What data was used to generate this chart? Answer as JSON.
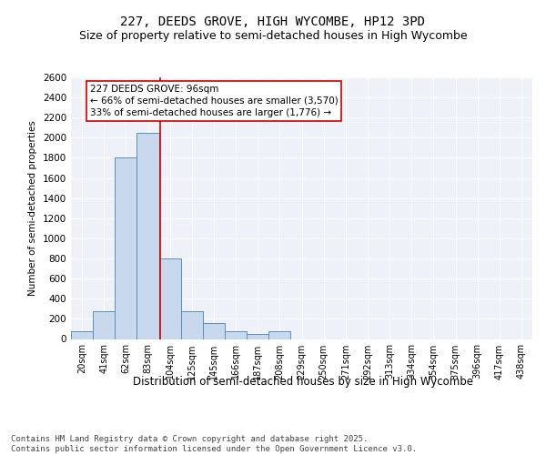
{
  "title_line1": "227, DEEDS GROVE, HIGH WYCOMBE, HP12 3PD",
  "title_line2": "Size of property relative to semi-detached houses in High Wycombe",
  "xlabel": "Distribution of semi-detached houses by size in High Wycombe",
  "ylabel": "Number of semi-detached properties",
  "categories": [
    "20sqm",
    "41sqm",
    "62sqm",
    "83sqm",
    "104sqm",
    "125sqm",
    "145sqm",
    "166sqm",
    "187sqm",
    "208sqm",
    "229sqm",
    "250sqm",
    "271sqm",
    "292sqm",
    "313sqm",
    "334sqm",
    "354sqm",
    "375sqm",
    "396sqm",
    "417sqm",
    "438sqm"
  ],
  "values": [
    75,
    275,
    1800,
    2050,
    800,
    275,
    160,
    75,
    50,
    75,
    0,
    0,
    0,
    0,
    0,
    0,
    0,
    0,
    0,
    0,
    0
  ],
  "bar_color": "#c8d9ed",
  "bar_edge_color": "#5a8fc0",
  "vline_x": 3.55,
  "vline_color": "#cc0000",
  "annotation_text": "227 DEEDS GROVE: 96sqm\n← 66% of semi-detached houses are smaller (3,570)\n33% of semi-detached houses are larger (1,776) →",
  "annotation_box_color": "#ffffff",
  "annotation_box_edge": "#cc0000",
  "ylim": [
    0,
    2600
  ],
  "yticks": [
    0,
    200,
    400,
    600,
    800,
    1000,
    1200,
    1400,
    1600,
    1800,
    2000,
    2200,
    2400,
    2600
  ],
  "plot_bg_color": "#eef2f8",
  "grid_color": "#ffffff",
  "footnote": "Contains HM Land Registry data © Crown copyright and database right 2025.\nContains public sector information licensed under the Open Government Licence v3.0.",
  "title_fontsize": 10,
  "subtitle_fontsize": 9,
  "footnote_fontsize": 6.5,
  "fig_bg_color": "#ffffff"
}
